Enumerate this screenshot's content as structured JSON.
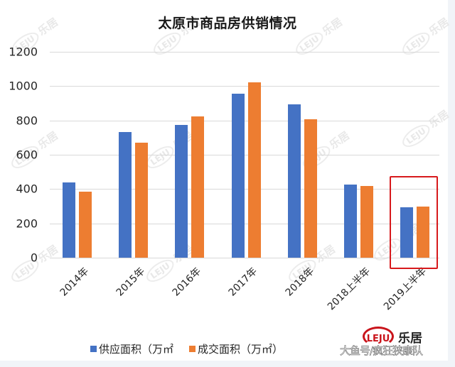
{
  "chart_data": {
    "type": "bar",
    "title": "太原市商品房供销情况",
    "xlabel": "",
    "ylabel": "",
    "ylim": [
      0,
      1200
    ],
    "yticks": [
      0,
      200,
      400,
      600,
      800,
      1000,
      1200
    ],
    "grid": true,
    "legend_position": "bottom",
    "categories": [
      "2014年",
      "2015年",
      "2016年",
      "2017年",
      "2018年",
      "2018上半年",
      "2019上半年"
    ],
    "series": [
      {
        "name": "供应面积（万㎡",
        "color": "#4472c4",
        "values": [
          437,
          734,
          775,
          957,
          895,
          428,
          293
        ]
      },
      {
        "name": "成交面积（万㎡）",
        "color": "#ed7d31",
        "values": [
          384,
          672,
          825,
          1022,
          808,
          420,
          296
        ]
      }
    ],
    "annotations": [
      {
        "type": "highlight-box",
        "category": "2019上半年",
        "color": "#d7191c"
      }
    ]
  },
  "legend": {
    "items": [
      {
        "label": "供应面积（万㎡",
        "color": "#4472c4"
      },
      {
        "label": "成交面积（万㎡）",
        "color": "#ed7d31"
      }
    ]
  },
  "brand": {
    "logo_text": "LEJU",
    "name": "乐居",
    "color": "#c9141b"
  },
  "overlay_caption": "大鱼号/疯狂狭康队",
  "watermark": {
    "logo_text": "LEJU",
    "name": "乐居"
  }
}
